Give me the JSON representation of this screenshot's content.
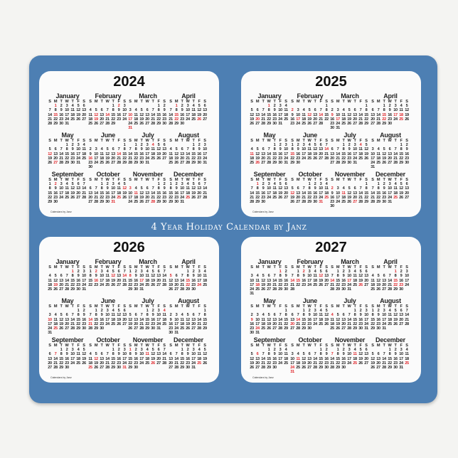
{
  "title": "4 Year Holiday Calendar by Janz",
  "credit": "Calendars by Janz",
  "month_names": [
    "January",
    "February",
    "March",
    "April",
    "May",
    "June",
    "July",
    "August",
    "September",
    "October",
    "November",
    "December"
  ],
  "weekdays": [
    "S",
    "M",
    "T",
    "W",
    "T",
    "F",
    "S"
  ],
  "colors": {
    "pad": "#4d7fb3",
    "card": "#fbfbfb",
    "holiday": "#e0252a",
    "text": "#222222"
  },
  "calendars": [
    {
      "year": "2024",
      "holidays": {
        "1": [
          1,
          15
        ],
        "2": [
          2,
          12,
          14,
          19
        ],
        "3": [
          10,
          17,
          31
        ],
        "4": [
          1,
          15,
          22,
          26
        ],
        "5": [
          12,
          27
        ],
        "6": [
          14,
          16
        ],
        "7": [
          4
        ],
        "8": [],
        "9": [
          2
        ],
        "10": [
          12,
          25,
          31
        ],
        "11": [
          3,
          11,
          28
        ],
        "12": [
          25
        ]
      }
    },
    {
      "year": "2025",
      "holidays": {
        "1": [
          1,
          20
        ],
        "2": [
          2,
          12,
          14,
          17
        ],
        "3": [
          9,
          17
        ],
        "4": [
          15,
          17,
          18,
          22,
          25
        ],
        "5": [
          11,
          26
        ],
        "6": [
          14,
          15
        ],
        "7": [
          4
        ],
        "8": [],
        "9": [
          1
        ],
        "10": [
          12,
          25,
          31
        ],
        "11": [
          2,
          11,
          27
        ],
        "12": [
          25
        ]
      }
    },
    {
      "year": "2026",
      "holidays": {
        "1": [
          1,
          19
        ],
        "2": [
          2,
          12,
          14,
          16
        ],
        "3": [
          8,
          17
        ],
        "4": [
          5,
          15,
          22,
          24
        ],
        "5": [
          10,
          25
        ],
        "6": [
          14,
          21
        ],
        "7": [
          4
        ],
        "8": [],
        "9": [
          7
        ],
        "10": [
          12,
          25,
          31
        ],
        "11": [
          1,
          11,
          26
        ],
        "12": [
          25
        ]
      }
    },
    {
      "year": "2027",
      "holidays": {
        "1": [
          1,
          18
        ],
        "2": [
          2,
          12,
          14,
          15
        ],
        "3": [
          14,
          17,
          26
        ],
        "4": [
          1,
          15,
          22,
          23
        ],
        "5": [
          9,
          24
        ],
        "6": [
          14,
          20
        ],
        "7": [
          4
        ],
        "8": [],
        "9": [
          6
        ],
        "10": [
          11,
          24,
          31
        ],
        "11": [
          7,
          11,
          25
        ],
        "12": [
          25
        ]
      }
    }
  ]
}
